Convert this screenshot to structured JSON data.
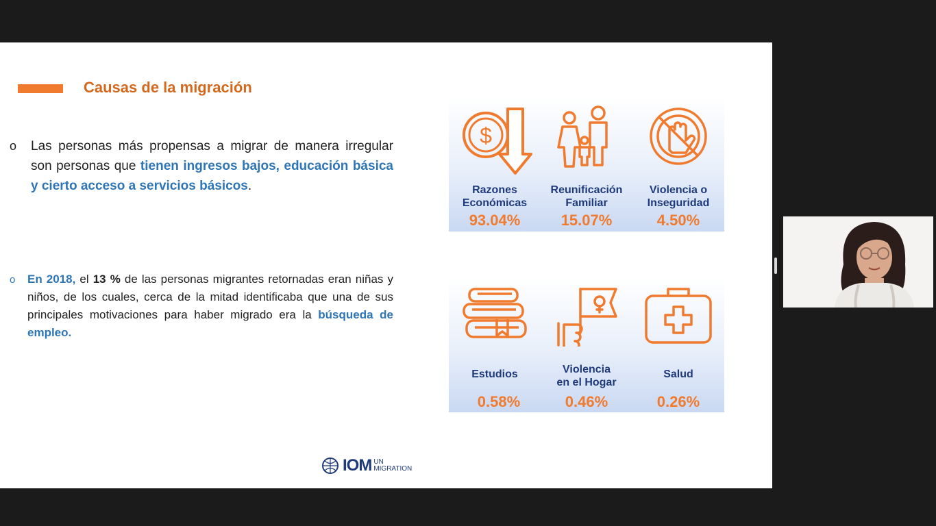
{
  "slide": {
    "title": "Causas de la migración",
    "bullet1": {
      "marker": "o",
      "prefix": "Las personas más propensas a migrar de manera irregular son personas que ",
      "highlight": "tienen ingresos bajos, educación básica y cierto acceso a servicios básicos",
      "suffix": "."
    },
    "bullet2": {
      "marker": "o",
      "year": "En 2018,",
      "text1": " el ",
      "pct": "13 %",
      "text2": " de las personas migrantes retornadas eran niñas y niños, de los cuales, cerca de la mitad identificaba que una de sus principales motivaciones para haber migrado era la ",
      "highlight": "búsqueda de empleo."
    },
    "panel1": [
      {
        "icon": "dollar-down-arrow-icon",
        "label1": "Razones",
        "label2": "Económicas",
        "value": "93.04%"
      },
      {
        "icon": "family-icon",
        "label1": "Reunificación",
        "label2": "Familiar",
        "value": "15.07%"
      },
      {
        "icon": "stop-hand-icon",
        "label1": "Violencia o",
        "label2": "Inseguridad",
        "value": "4.50%"
      }
    ],
    "panel2": [
      {
        "icon": "books-icon",
        "label1": "Estudios",
        "label2": "",
        "value": "0.58%"
      },
      {
        "icon": "gender-flag-icon",
        "label1": "Violencia",
        "label2": "en el Hogar",
        "value": "0.46%"
      },
      {
        "icon": "first-aid-kit-icon",
        "label1": "Salud",
        "label2": "",
        "value": "0.26%"
      }
    ],
    "logo": {
      "main": "IOM",
      "line1": "UN",
      "line2": "MIGRATION"
    }
  },
  "colors": {
    "accent": "#f07a2e",
    "title": "#d2691e",
    "highlight": "#2e75b6",
    "label": "#1f3a7a"
  }
}
